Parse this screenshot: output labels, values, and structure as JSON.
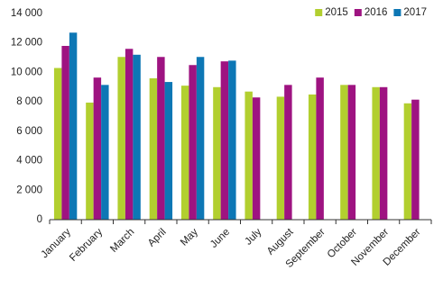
{
  "chart_data": {
    "type": "bar",
    "categories": [
      "January",
      "February",
      "March",
      "April",
      "May",
      "June",
      "July",
      "August",
      "September",
      "October",
      "November",
      "December"
    ],
    "series": [
      {
        "name": "2015",
        "color": "#b2cf2f",
        "values": [
          10300,
          7950,
          11050,
          9600,
          9100,
          9000,
          8700,
          8350,
          8500,
          9150,
          9000,
          7900
        ]
      },
      {
        "name": "2016",
        "color": "#9e1381",
        "values": [
          11800,
          9650,
          11600,
          11050,
          10500,
          10750,
          8300,
          9150,
          9650,
          9150,
          9000,
          8150
        ]
      },
      {
        "name": "2017",
        "color": "#0d77b5",
        "values": [
          12700,
          9150,
          11200,
          9350,
          11050,
          10800,
          null,
          null,
          null,
          null,
          null,
          null
        ]
      }
    ],
    "ylim": [
      0,
      14000
    ],
    "yticks": [
      0,
      {
        "value": 2000,
        "label": "2 000"
      },
      {
        "value": 4000,
        "label": "4 000"
      },
      {
        "value": 6000,
        "label": "6 000"
      },
      {
        "value": 8000,
        "label": "8 000"
      },
      {
        "value": 10000,
        "label": "10 000"
      },
      {
        "value": 12000,
        "label": "12 000"
      },
      {
        "value": 14000,
        "label": "14 000"
      }
    ],
    "grid": false,
    "legend": "top-right"
  }
}
